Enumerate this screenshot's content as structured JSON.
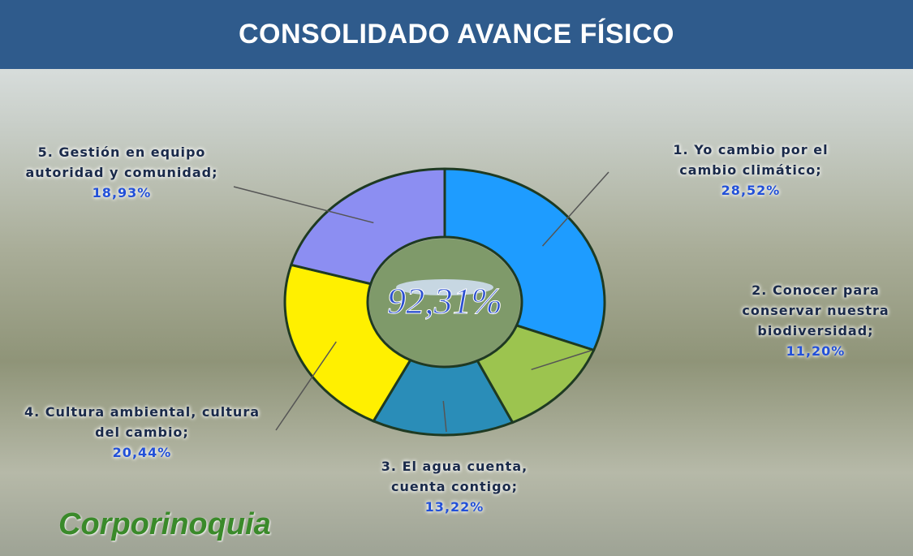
{
  "chart_data": {
    "type": "pie",
    "title": "CONSOLIDADO AVANCE FÍSICO",
    "categories": [
      "1. Yo cambio por el cambio climático;",
      "2. Conocer para conservar nuestra biodiversidad;",
      "3. El agua cuenta, cuenta contigo;",
      "4. Cultura ambiental, cultura del cambio;",
      "5. Gestión en equipo autoridad y comunidad;"
    ],
    "values": [
      28.52,
      11.2,
      13.22,
      20.44,
      18.93
    ],
    "value_labels": [
      "28,52%",
      "11,20%",
      "13,22%",
      "20,44%",
      "18,93%"
    ],
    "colors": [
      "#1e9cff",
      "#9cc44f",
      "#2a8db8",
      "#fff000",
      "#8c8ef2"
    ],
    "center_label": "92,31%",
    "logo": "Corporinoquia"
  }
}
